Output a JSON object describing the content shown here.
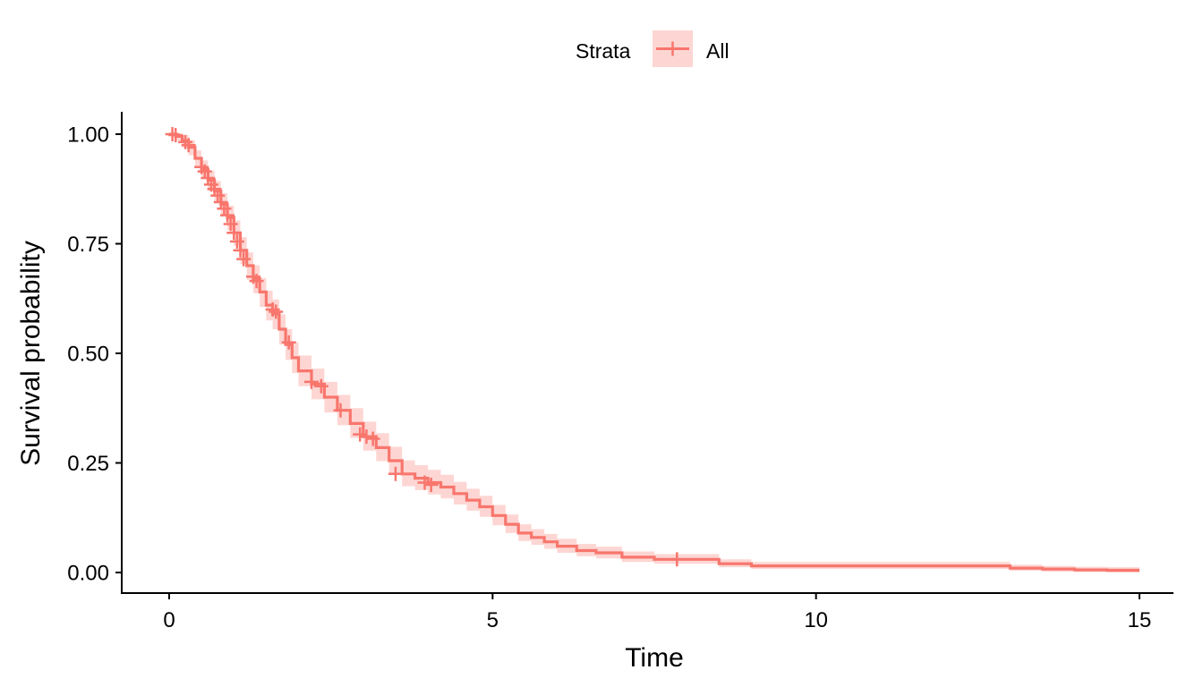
{
  "chart_data": {
    "type": "line",
    "subtype": "kaplan-meier-survival",
    "title": "",
    "xlabel": "Time",
    "ylabel": "Survival probability",
    "xlim": [
      0,
      15
    ],
    "ylim": [
      0,
      1
    ],
    "x_ticks": [
      0,
      5,
      10,
      15
    ],
    "x_tick_labels": [
      "0",
      "5",
      "10",
      "15"
    ],
    "y_ticks": [
      0,
      0.25,
      0.5,
      0.75,
      1
    ],
    "y_tick_labels": [
      "0.00",
      "0.25",
      "0.50",
      "0.75",
      "1.00"
    ],
    "grid": false,
    "legend": {
      "title": "Strata",
      "position": "top",
      "entries": [
        "All"
      ]
    },
    "series": [
      {
        "name": "All",
        "color": "#F8766D",
        "band_color": "#F8766D",
        "x": [
          0,
          0.1,
          0.2,
          0.3,
          0.4,
          0.5,
          0.6,
          0.7,
          0.8,
          0.9,
          1.0,
          1.1,
          1.2,
          1.3,
          1.4,
          1.5,
          1.6,
          1.7,
          1.8,
          1.9,
          2.0,
          2.2,
          2.4,
          2.6,
          2.8,
          3.0,
          3.2,
          3.4,
          3.6,
          3.8,
          4.0,
          4.2,
          4.4,
          4.6,
          4.8,
          5.0,
          5.2,
          5.4,
          5.6,
          5.8,
          6.0,
          6.3,
          6.6,
          7.0,
          7.5,
          8.0,
          8.5,
          9.0,
          10.0,
          11.0,
          12.0,
          12.5,
          13.0,
          13.5,
          14.0,
          14.5,
          15.0
        ],
        "y": [
          1.0,
          0.995,
          0.985,
          0.97,
          0.945,
          0.92,
          0.895,
          0.87,
          0.84,
          0.81,
          0.775,
          0.735,
          0.7,
          0.67,
          0.64,
          0.61,
          0.59,
          0.555,
          0.52,
          0.49,
          0.46,
          0.43,
          0.4,
          0.37,
          0.34,
          0.31,
          0.285,
          0.255,
          0.225,
          0.215,
          0.205,
          0.195,
          0.18,
          0.165,
          0.15,
          0.13,
          0.11,
          0.09,
          0.08,
          0.07,
          0.06,
          0.05,
          0.045,
          0.035,
          0.03,
          0.03,
          0.02,
          0.015,
          0.015,
          0.015,
          0.015,
          0.015,
          0.01,
          0.008,
          0.006,
          0.005,
          0.005
        ],
        "lower": [
          1.0,
          0.985,
          0.97,
          0.952,
          0.925,
          0.898,
          0.871,
          0.845,
          0.813,
          0.781,
          0.745,
          0.704,
          0.668,
          0.637,
          0.606,
          0.575,
          0.555,
          0.52,
          0.485,
          0.455,
          0.425,
          0.395,
          0.365,
          0.336,
          0.307,
          0.278,
          0.254,
          0.225,
          0.197,
          0.188,
          0.178,
          0.169,
          0.155,
          0.141,
          0.127,
          0.108,
          0.09,
          0.072,
          0.063,
          0.054,
          0.045,
          0.037,
          0.032,
          0.024,
          0.02,
          0.02,
          0.012,
          0.008,
          0.008,
          0.008,
          0.008,
          0.008,
          0.004,
          0.002,
          0.001,
          0.0,
          0.0
        ],
        "upper": [
          1.0,
          1.0,
          0.998,
          0.986,
          0.963,
          0.94,
          0.917,
          0.893,
          0.865,
          0.837,
          0.803,
          0.765,
          0.73,
          0.701,
          0.672,
          0.643,
          0.623,
          0.589,
          0.555,
          0.525,
          0.495,
          0.465,
          0.435,
          0.405,
          0.375,
          0.344,
          0.318,
          0.287,
          0.256,
          0.245,
          0.234,
          0.223,
          0.207,
          0.191,
          0.175,
          0.154,
          0.132,
          0.11,
          0.099,
          0.088,
          0.077,
          0.065,
          0.059,
          0.048,
          0.042,
          0.042,
          0.03,
          0.024,
          0.024,
          0.024,
          0.024,
          0.024,
          0.018,
          0.015,
          0.013,
          0.012,
          0.012
        ],
        "censor_x": [
          0.05,
          0.1,
          0.25,
          0.3,
          0.5,
          0.55,
          0.6,
          0.65,
          0.7,
          0.75,
          0.8,
          0.85,
          0.9,
          0.95,
          1.0,
          1.05,
          1.1,
          1.15,
          1.3,
          1.35,
          1.6,
          1.65,
          1.85,
          2.2,
          2.35,
          2.65,
          2.95,
          3.05,
          3.15,
          3.5,
          3.95,
          4.05,
          7.85
        ],
        "censor_y": [
          1.0,
          0.998,
          0.982,
          0.975,
          0.925,
          0.915,
          0.9,
          0.885,
          0.875,
          0.86,
          0.845,
          0.83,
          0.815,
          0.795,
          0.775,
          0.755,
          0.735,
          0.715,
          0.675,
          0.665,
          0.6,
          0.595,
          0.525,
          0.435,
          0.425,
          0.37,
          0.315,
          0.31,
          0.305,
          0.225,
          0.205,
          0.2,
          0.03
        ]
      }
    ]
  }
}
